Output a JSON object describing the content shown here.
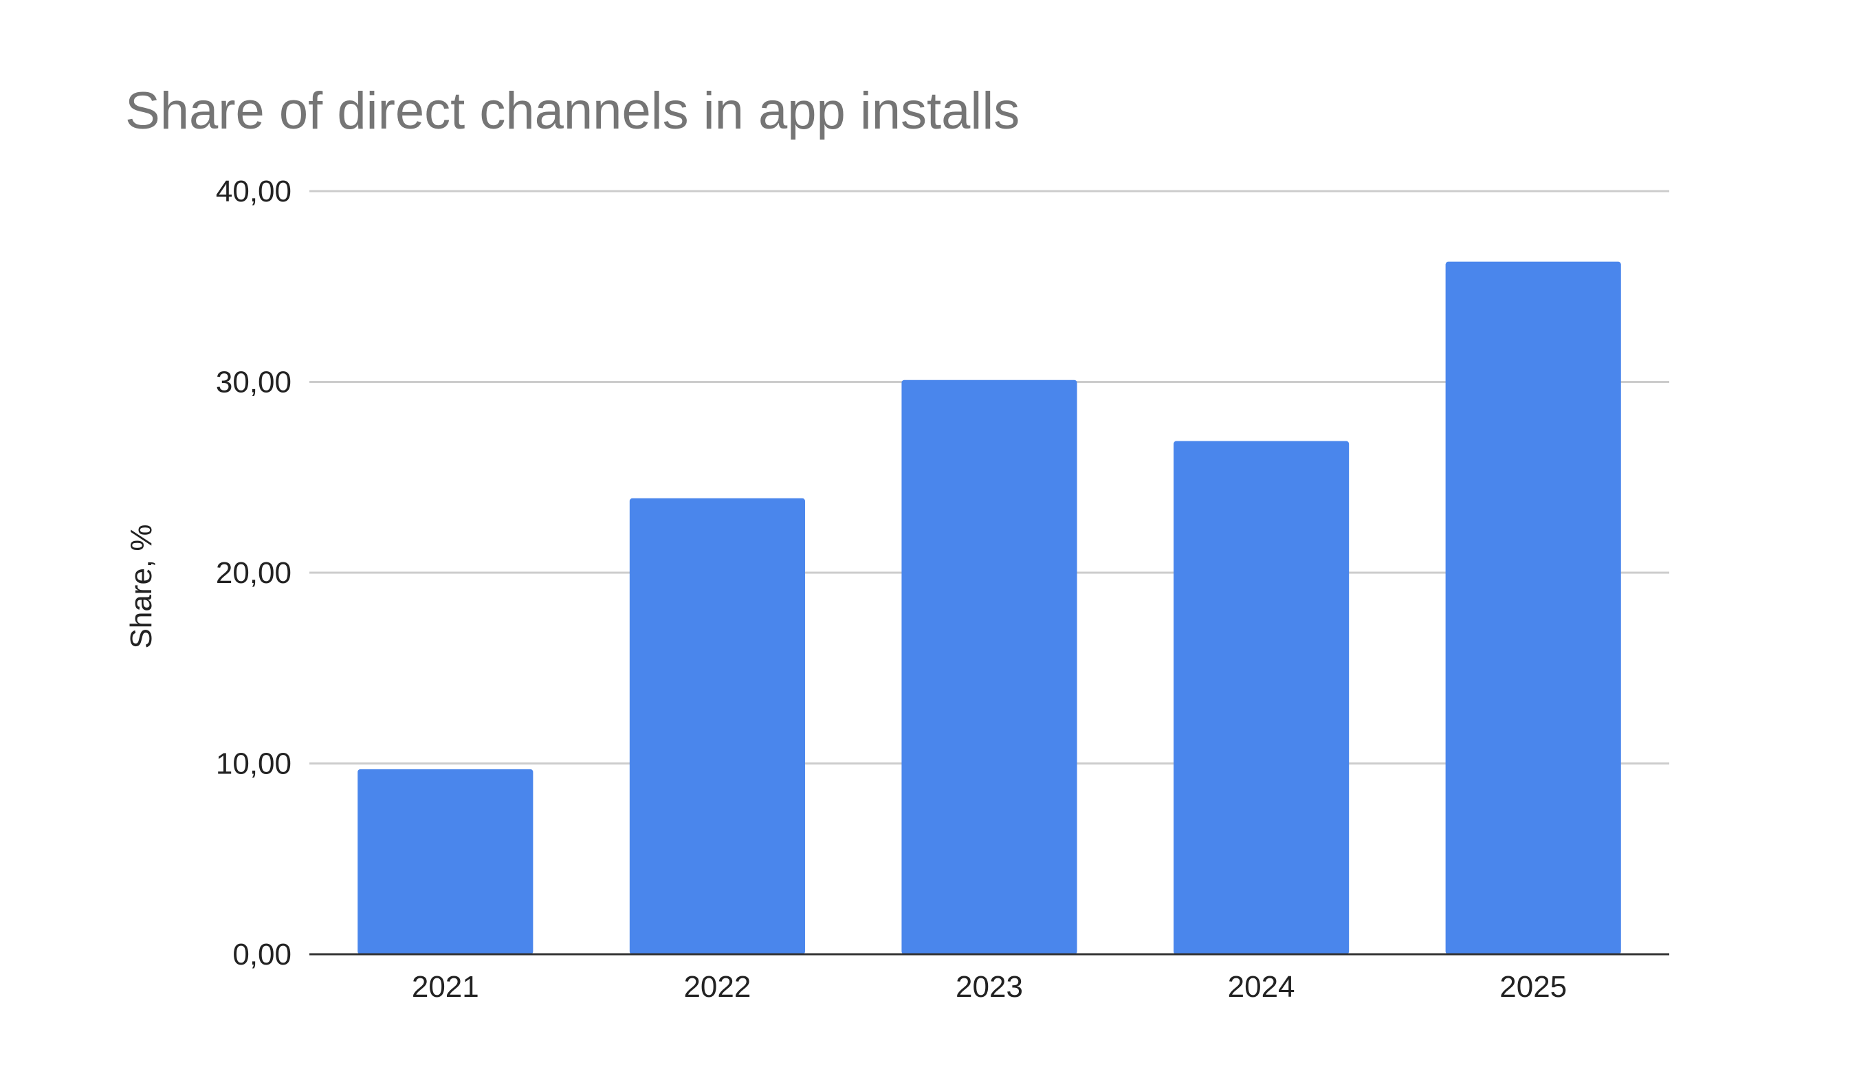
{
  "chart_data": {
    "type": "bar",
    "title": "Share of direct channels in app installs",
    "xlabel": "",
    "ylabel": "Share, %",
    "categories": [
      "2021",
      "2022",
      "2023",
      "2024",
      "2025"
    ],
    "values": [
      9.7,
      23.9,
      30.1,
      26.9,
      36.3
    ],
    "ylim": [
      0,
      40
    ],
    "yticks": [
      0,
      10,
      20,
      30,
      40
    ],
    "ytick_labels": [
      "0,00",
      "10,00",
      "20,00",
      "30,00",
      "40,00"
    ],
    "grid": true,
    "legend": "none",
    "bar_color": "#4a86ec",
    "grid_color": "#cccccc",
    "axis_color": "#333333"
  }
}
